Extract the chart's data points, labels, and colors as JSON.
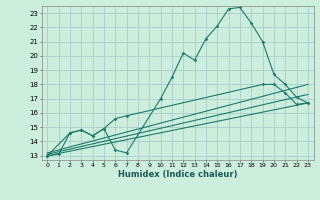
{
  "xlabel": "Humidex (Indice chaleur)",
  "bg_color": "#cceedd",
  "grid_color": "#aacccc",
  "line_color": "#1a7a6a",
  "xlim": [
    -0.5,
    23.5
  ],
  "ylim": [
    13,
    23
  ],
  "yticks": [
    13,
    14,
    15,
    16,
    17,
    18,
    19,
    20,
    21,
    22,
    23
  ],
  "xticks": [
    0,
    1,
    2,
    3,
    4,
    5,
    6,
    7,
    8,
    9,
    10,
    11,
    12,
    13,
    14,
    15,
    16,
    17,
    18,
    19,
    20,
    21,
    22,
    23
  ],
  "curve1_x": [
    0,
    1,
    2,
    3,
    4,
    5,
    6,
    7,
    10,
    11,
    12,
    13,
    14,
    15,
    16,
    17,
    18,
    19,
    20,
    21,
    22,
    23
  ],
  "curve1_y": [
    13.0,
    13.1,
    14.6,
    14.8,
    14.4,
    14.9,
    13.4,
    13.2,
    17.0,
    18.5,
    20.2,
    19.7,
    21.2,
    22.1,
    23.3,
    23.4,
    22.3,
    21.0,
    18.7,
    18.0,
    17.1,
    16.7
  ],
  "curve2_x": [
    0,
    2,
    3,
    4,
    5,
    6,
    7,
    19,
    20,
    21,
    22,
    23
  ],
  "curve2_y": [
    13.0,
    14.6,
    14.8,
    14.4,
    14.9,
    15.6,
    15.8,
    18.0,
    18.0,
    17.4,
    16.6,
    16.7
  ],
  "line1_x": [
    0,
    23
  ],
  "line1_y": [
    13.2,
    18.0
  ],
  "line2_x": [
    0,
    23
  ],
  "line2_y": [
    13.0,
    16.7
  ],
  "line3_x": [
    0,
    23
  ],
  "line3_y": [
    13.1,
    17.3
  ]
}
